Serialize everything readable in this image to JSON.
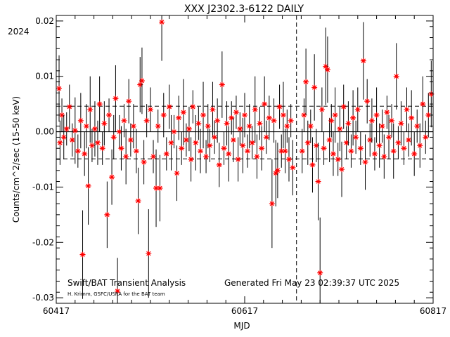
{
  "chart_data": {
    "type": "scatter",
    "title": "XXX J2302.3-6122 DAILY",
    "xlabel": "MJD",
    "ylabel": "Counts/cm^2/sec (15-50 keV)",
    "year_label": "2024",
    "xlim": [
      60417,
      60817
    ],
    "ylim": [
      -0.031,
      0.021
    ],
    "x_ticks": [
      60417,
      60617,
      60817
    ],
    "y_ticks": [
      -0.03,
      -0.02,
      -0.01,
      0.0,
      0.01,
      0.02
    ],
    "y_tick_labels": [
      "-0.03",
      "-0.02",
      "-0.01",
      "0.00",
      "0.01",
      "0.02"
    ],
    "x_tick_labels": [
      "60417",
      "60617",
      "60817"
    ],
    "mean_line": 0.0,
    "dashed_lines_y": [
      0.0046,
      -0.0049
    ],
    "vertical_dashed_x": 60672,
    "footer_left": "Swift/BAT Transient Analysis",
    "footer_credit": "H. Krimm, GSFC/USRA for the BAT team",
    "footer_right": "Generated Fri May 23 02:39:37 UTC 2025",
    "marker_color": "#ff0000",
    "line_color": "#000000",
    "points": [
      [
        60420,
        0.0078,
        0.006
      ],
      [
        60421,
        -0.002,
        0.004
      ],
      [
        60423,
        0.003,
        0.003
      ],
      [
        60425,
        -0.001,
        0.004
      ],
      [
        60428,
        0.0005,
        0.003
      ],
      [
        60431,
        0.0045,
        0.004
      ],
      [
        60434,
        -0.0015,
        0.003
      ],
      [
        60437,
        0.0002,
        0.006
      ],
      [
        60440,
        -0.0035,
        0.003
      ],
      [
        60443,
        0.002,
        0.005
      ],
      [
        60445,
        -0.0222,
        0.008
      ],
      [
        60447,
        -0.004,
        0.004
      ],
      [
        60449,
        0.001,
        0.004
      ],
      [
        60451,
        -0.0098,
        0.007
      ],
      [
        60453,
        0.004,
        0.006
      ],
      [
        60455,
        -0.0025,
        0.003
      ],
      [
        60458,
        0.0005,
        0.005
      ],
      [
        60461,
        -0.002,
        0.004
      ],
      [
        60463,
        0.005,
        0.005
      ],
      [
        60466,
        -0.003,
        0.003
      ],
      [
        60468,
        0.0015,
        0.004
      ],
      [
        60471,
        -0.015,
        0.006
      ],
      [
        60473,
        0.003,
        0.003
      ],
      [
        60476,
        -0.0082,
        0.005
      ],
      [
        60478,
        -0.001,
        0.004
      ],
      [
        60480,
        0.006,
        0.006
      ],
      [
        60482,
        -0.0288,
        0.006
      ],
      [
        60484,
        0.0,
        0.003
      ],
      [
        60486,
        -0.003,
        0.004
      ],
      [
        60489,
        0.002,
        0.003
      ],
      [
        60491,
        -0.0045,
        0.005
      ],
      [
        60494,
        0.0055,
        0.004
      ],
      [
        60496,
        -0.0015,
        0.003
      ],
      [
        60499,
        0.001,
        0.004
      ],
      [
        60502,
        -0.0035,
        0.004
      ],
      [
        60504,
        -0.0125,
        0.006
      ],
      [
        60506,
        0.0085,
        0.005
      ],
      [
        60508,
        0.0092,
        0.006
      ],
      [
        60510,
        -0.0055,
        0.004
      ],
      [
        60513,
        0.002,
        0.003
      ],
      [
        60515,
        -0.022,
        0.008
      ],
      [
        60517,
        0.004,
        0.004
      ],
      [
        60520,
        -0.0045,
        0.003
      ],
      [
        60523,
        -0.0102,
        0.007
      ],
      [
        60525,
        0.001,
        0.003
      ],
      [
        60527,
        -0.0102,
        0.006
      ],
      [
        60529,
        0.0198,
        0.007
      ],
      [
        60531,
        0.003,
        0.004
      ],
      [
        60534,
        -0.004,
        0.003
      ],
      [
        60537,
        0.0045,
        0.004
      ],
      [
        60539,
        -0.002,
        0.005
      ],
      [
        60542,
        0.0,
        0.003
      ],
      [
        60545,
        -0.0075,
        0.005
      ],
      [
        60547,
        0.0025,
        0.004
      ],
      [
        60550,
        -0.003,
        0.003
      ],
      [
        60552,
        0.0035,
        0.006
      ],
      [
        60555,
        -0.0015,
        0.003
      ],
      [
        60558,
        0.0005,
        0.004
      ],
      [
        60560,
        -0.005,
        0.004
      ],
      [
        60562,
        0.0045,
        0.003
      ],
      [
        60565,
        -0.002,
        0.005
      ],
      [
        60568,
        0.0015,
        0.003
      ],
      [
        60570,
        -0.0035,
        0.004
      ],
      [
        60573,
        0.003,
        0.006
      ],
      [
        60576,
        -0.0045,
        0.003
      ],
      [
        60578,
        0.001,
        0.004
      ],
      [
        60580,
        -0.0025,
        0.003
      ],
      [
        60583,
        0.004,
        0.005
      ],
      [
        60585,
        -0.001,
        0.003
      ],
      [
        60588,
        0.002,
        0.004
      ],
      [
        60590,
        -0.006,
        0.004
      ],
      [
        60593,
        0.0085,
        0.006
      ],
      [
        60595,
        -0.003,
        0.003
      ],
      [
        60598,
        0.0015,
        0.004
      ],
      [
        60600,
        -0.004,
        0.005
      ],
      [
        60603,
        0.0025,
        0.003
      ],
      [
        60605,
        -0.0015,
        0.004
      ],
      [
        60608,
        0.0035,
        0.003
      ],
      [
        60610,
        -0.005,
        0.004
      ],
      [
        60612,
        0.0005,
        0.003
      ],
      [
        60615,
        -0.0025,
        0.005
      ],
      [
        60617,
        0.003,
        0.004
      ],
      [
        60620,
        -0.0035,
        0.003
      ],
      [
        60622,
        0.001,
        0.004
      ],
      [
        60625,
        -0.002,
        0.003
      ],
      [
        60628,
        0.004,
        0.006
      ],
      [
        60630,
        -0.0045,
        0.004
      ],
      [
        60633,
        0.0015,
        0.003
      ],
      [
        60635,
        -0.003,
        0.004
      ],
      [
        60638,
        0.005,
        0.005
      ],
      [
        60640,
        -0.001,
        0.003
      ],
      [
        60643,
        0.0025,
        0.004
      ],
      [
        60646,
        -0.013,
        0.008
      ],
      [
        60648,
        0.002,
        0.004
      ],
      [
        60650,
        -0.0075,
        0.006
      ],
      [
        60652,
        -0.007,
        0.005
      ],
      [
        60654,
        0.0045,
        0.004
      ],
      [
        60656,
        -0.0035,
        0.003
      ],
      [
        60658,
        0.003,
        0.006
      ],
      [
        60660,
        -0.0035,
        0.004
      ],
      [
        60662,
        0.001,
        0.003
      ],
      [
        60664,
        -0.005,
        0.004
      ],
      [
        60666,
        0.002,
        0.003
      ],
      [
        60668,
        -0.0065,
        0.005
      ],
      [
        60678,
        -0.0035,
        0.004
      ],
      [
        60680,
        0.003,
        0.003
      ],
      [
        60682,
        0.009,
        0.006
      ],
      [
        60684,
        -0.002,
        0.004
      ],
      [
        60687,
        0.001,
        0.003
      ],
      [
        60689,
        -0.006,
        0.005
      ],
      [
        60691,
        0.008,
        0.006
      ],
      [
        60693,
        -0.0025,
        0.003
      ],
      [
        60695,
        -0.009,
        0.007
      ],
      [
        60697,
        -0.0255,
        0.01
      ],
      [
        60699,
        0.004,
        0.004
      ],
      [
        60701,
        -0.003,
        0.003
      ],
      [
        60703,
        0.0118,
        0.007
      ],
      [
        60705,
        0.0112,
        0.006
      ],
      [
        60707,
        -0.0015,
        0.004
      ],
      [
        60709,
        0.002,
        0.003
      ],
      [
        60711,
        -0.004,
        0.004
      ],
      [
        60713,
        0.003,
        0.005
      ],
      [
        60716,
        -0.005,
        0.003
      ],
      [
        60718,
        0.0005,
        0.004
      ],
      [
        60720,
        -0.0068,
        0.005
      ],
      [
        60722,
        0.0045,
        0.004
      ],
      [
        60725,
        -0.002,
        0.003
      ],
      [
        60727,
        0.0015,
        0.004
      ],
      [
        60730,
        -0.0035,
        0.003
      ],
      [
        60732,
        0.0025,
        0.005
      ],
      [
        60735,
        -0.001,
        0.003
      ],
      [
        60737,
        0.004,
        0.004
      ],
      [
        60740,
        -0.003,
        0.003
      ],
      [
        60743,
        0.0128,
        0.007
      ],
      [
        60745,
        -0.0055,
        0.005
      ],
      [
        60747,
        0.0055,
        0.004
      ],
      [
        60750,
        -0.0015,
        0.003
      ],
      [
        60752,
        0.002,
        0.004
      ],
      [
        60755,
        -0.004,
        0.003
      ],
      [
        60757,
        0.003,
        0.005
      ],
      [
        60760,
        -0.0025,
        0.004
      ],
      [
        60763,
        0.001,
        0.003
      ],
      [
        60765,
        -0.0045,
        0.004
      ],
      [
        60768,
        0.0035,
        0.003
      ],
      [
        60770,
        -0.001,
        0.004
      ],
      [
        60773,
        0.002,
        0.003
      ],
      [
        60775,
        -0.0035,
        0.005
      ],
      [
        60778,
        0.01,
        0.006
      ],
      [
        60780,
        -0.002,
        0.003
      ],
      [
        60783,
        0.0015,
        0.004
      ],
      [
        60786,
        -0.003,
        0.003
      ],
      [
        60789,
        0.004,
        0.004
      ],
      [
        60791,
        -0.0015,
        0.003
      ],
      [
        60794,
        0.0025,
        0.005
      ],
      [
        60797,
        -0.004,
        0.004
      ],
      [
        60800,
        0.001,
        0.003
      ],
      [
        60803,
        -0.0025,
        0.004
      ],
      [
        60806,
        0.005,
        0.005
      ],
      [
        60809,
        -0.001,
        0.003
      ],
      [
        60812,
        0.003,
        0.004
      ],
      [
        60815,
        0.0068,
        0.006
      ]
    ]
  }
}
